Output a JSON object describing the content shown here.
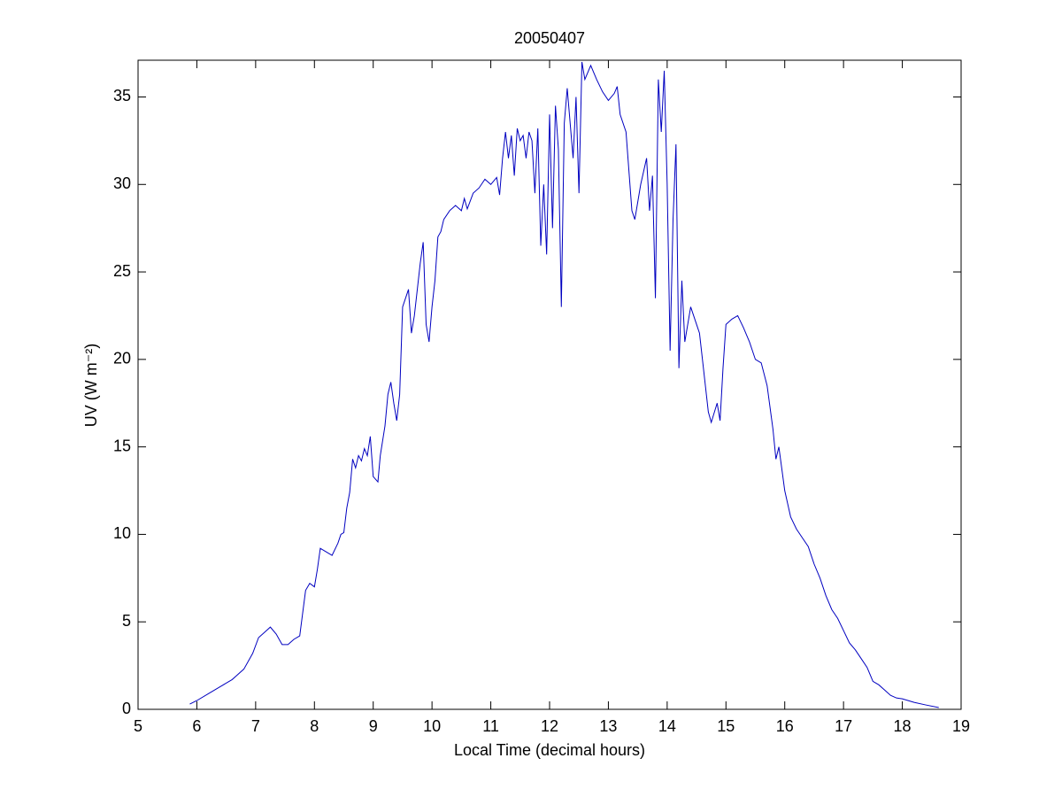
{
  "chart_data": {
    "type": "line",
    "title": "20050407",
    "xlabel": "Local Time (decimal hours)",
    "ylabel": "UV (W m⁻²)",
    "xlim": [
      5,
      19
    ],
    "ylim": [
      0,
      37.1
    ],
    "xticks": [
      5,
      6,
      7,
      8,
      9,
      10,
      11,
      12,
      13,
      14,
      15,
      16,
      17,
      18,
      19
    ],
    "yticks": [
      0,
      5,
      10,
      15,
      20,
      25,
      30,
      35
    ],
    "grid": false,
    "series": [
      {
        "color": "#0000c0",
        "x": [
          5.88,
          6.0,
          6.2,
          6.4,
          6.6,
          6.8,
          6.95,
          7.05,
          7.15,
          7.25,
          7.35,
          7.45,
          7.55,
          7.65,
          7.75,
          7.8,
          7.85,
          7.92,
          8.0,
          8.05,
          8.1,
          8.2,
          8.3,
          8.4,
          8.45,
          8.5,
          8.55,
          8.6,
          8.65,
          8.7,
          8.75,
          8.8,
          8.85,
          8.9,
          8.95,
          9.0,
          9.08,
          9.12,
          9.2,
          9.25,
          9.3,
          9.35,
          9.4,
          9.45,
          9.5,
          9.55,
          9.6,
          9.65,
          9.7,
          9.75,
          9.8,
          9.85,
          9.9,
          9.95,
          10.0,
          10.05,
          10.1,
          10.15,
          10.2,
          10.3,
          10.4,
          10.5,
          10.55,
          10.6,
          10.7,
          10.8,
          10.9,
          11.0,
          11.1,
          11.15,
          11.2,
          11.25,
          11.3,
          11.35,
          11.4,
          11.45,
          11.5,
          11.55,
          11.6,
          11.65,
          11.7,
          11.75,
          11.8,
          11.85,
          11.9,
          11.95,
          12.0,
          12.05,
          12.1,
          12.15,
          12.2,
          12.25,
          12.3,
          12.4,
          12.45,
          12.5,
          12.55,
          12.6,
          12.7,
          12.8,
          12.9,
          13.0,
          13.1,
          13.15,
          13.2,
          13.3,
          13.4,
          13.45,
          13.55,
          13.65,
          13.7,
          13.75,
          13.8,
          13.85,
          13.9,
          13.95,
          14.0,
          14.05,
          14.1,
          14.15,
          14.2,
          14.25,
          14.3,
          14.4,
          14.5,
          14.55,
          14.6,
          14.7,
          14.75,
          14.85,
          14.9,
          14.95,
          15.0,
          15.1,
          15.2,
          15.3,
          15.4,
          15.5,
          15.6,
          15.7,
          15.8,
          15.85,
          15.9,
          16.0,
          16.1,
          16.2,
          16.3,
          16.4,
          16.5,
          16.6,
          16.7,
          16.8,
          16.9,
          17.0,
          17.1,
          17.2,
          17.3,
          17.4,
          17.5,
          17.6,
          17.7,
          17.8,
          17.9,
          18.0,
          18.2,
          18.4,
          18.62
        ],
        "values": [
          0.3,
          0.5,
          0.9,
          1.3,
          1.7,
          2.3,
          3.2,
          4.1,
          4.4,
          4.7,
          4.3,
          3.7,
          3.7,
          4.0,
          4.2,
          5.5,
          6.8,
          7.2,
          7.0,
          8.0,
          9.2,
          9.0,
          8.8,
          9.5,
          10.0,
          10.1,
          11.5,
          12.4,
          14.3,
          13.8,
          14.5,
          14.2,
          14.9,
          14.5,
          15.6,
          13.3,
          13.0,
          14.5,
          16.2,
          18.0,
          18.7,
          17.5,
          16.5,
          18.0,
          23.0,
          23.5,
          24.0,
          21.5,
          22.5,
          24.0,
          25.5,
          26.7,
          22.0,
          21.0,
          23.0,
          24.5,
          27.0,
          27.3,
          28.0,
          28.5,
          28.8,
          28.5,
          29.2,
          28.6,
          29.5,
          29.8,
          30.3,
          30.0,
          30.4,
          29.4,
          31.5,
          33.0,
          31.5,
          32.8,
          30.5,
          33.2,
          32.5,
          32.8,
          31.5,
          33.0,
          32.5,
          29.5,
          33.2,
          26.5,
          30.0,
          26.0,
          34.0,
          27.5,
          34.5,
          32.0,
          23.0,
          33.5,
          35.5,
          31.5,
          35.0,
          29.5,
          37.0,
          36.0,
          36.8,
          36.0,
          35.3,
          34.8,
          35.2,
          35.6,
          34.0,
          33.0,
          28.5,
          28.0,
          30.0,
          31.5,
          28.5,
          30.5,
          23.5,
          36.0,
          33.0,
          36.5,
          30.0,
          20.5,
          28.0,
          32.3,
          19.5,
          24.5,
          21.0,
          23.0,
          22.0,
          21.5,
          20.0,
          17.0,
          16.4,
          17.5,
          16.5,
          19.5,
          22.0,
          22.3,
          22.5,
          21.8,
          21.0,
          20.0,
          19.8,
          18.5,
          16.0,
          14.3,
          15.0,
          12.5,
          11.0,
          10.3,
          9.8,
          9.3,
          8.3,
          7.5,
          6.5,
          5.7,
          5.2,
          4.5,
          3.8,
          3.4,
          2.9,
          2.4,
          1.6,
          1.4,
          1.1,
          0.8,
          0.65,
          0.6,
          0.4,
          0.25,
          0.1
        ]
      }
    ]
  }
}
